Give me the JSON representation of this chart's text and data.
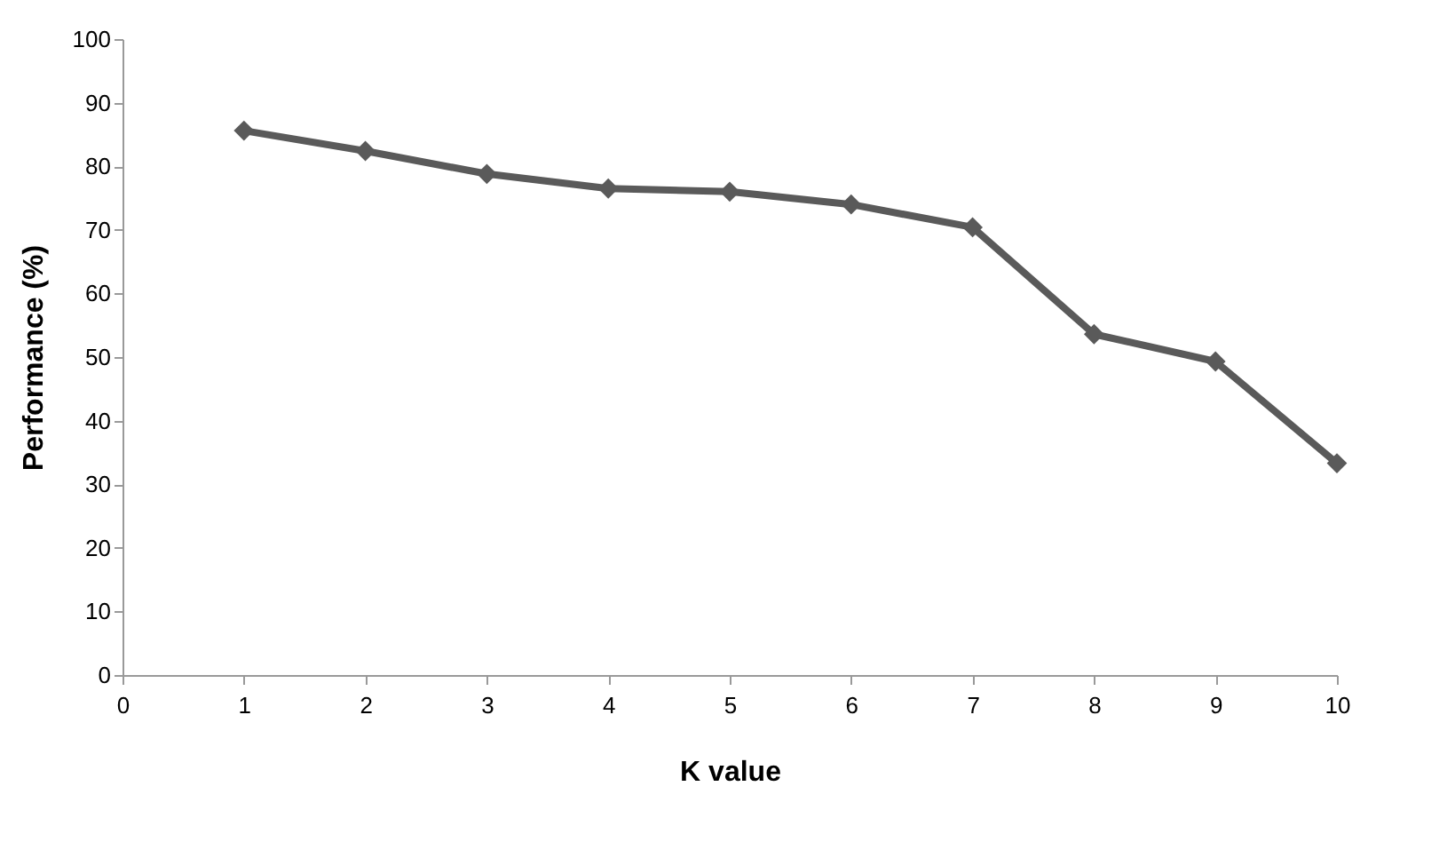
{
  "chart_data": {
    "type": "line",
    "xlabel": "K value",
    "ylabel": "Performance (%)",
    "x": [
      1,
      2,
      3,
      4,
      5,
      6,
      7,
      8,
      9,
      10
    ],
    "series": [
      {
        "color": "#5a5a5a",
        "values": [
          85.6,
          82.4,
          78.8,
          76.5,
          76.0,
          74.0,
          70.4,
          53.6,
          49.3,
          33.3
        ]
      }
    ],
    "xlim": [
      0,
      10
    ],
    "xticks": [
      0,
      1,
      2,
      3,
      4,
      5,
      6,
      7,
      8,
      9,
      10
    ],
    "ylim": [
      0,
      100
    ],
    "yticks": [
      0,
      10,
      20,
      30,
      40,
      50,
      60,
      70,
      80,
      90,
      100
    ],
    "marker": "diamond",
    "grid": false
  }
}
